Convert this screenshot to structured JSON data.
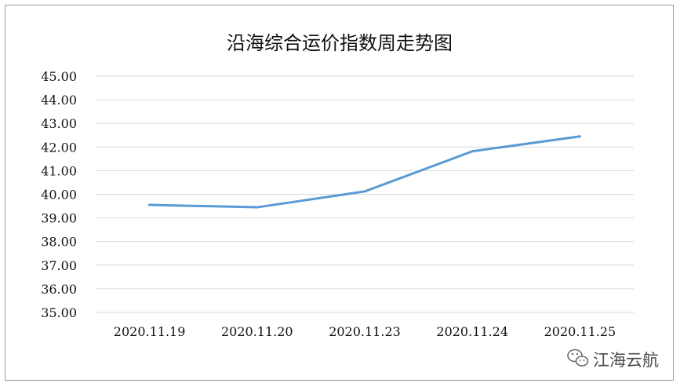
{
  "chart_data": {
    "type": "line",
    "title": "沿海综合运价指数周走势图",
    "xlabel": "",
    "ylabel": "",
    "categories": [
      "2020.11.19",
      "2020.11.20",
      "2020.11.23",
      "2020.11.24",
      "2020.11.25"
    ],
    "series": [
      {
        "values": [
          39.55,
          39.45,
          40.12,
          41.82,
          42.45
        ]
      }
    ],
    "ylim": [
      35,
      45
    ],
    "yticks": [
      "35.00",
      "36.00",
      "37.00",
      "38.00",
      "39.00",
      "40.00",
      "41.00",
      "42.00",
      "43.00",
      "44.00",
      "45.00"
    ],
    "grid": true,
    "legend": "none",
    "line_color": "#5b9bd5",
    "grid_color": "#d9d9d9"
  },
  "watermark": {
    "icon": "wechat-icon",
    "text": "江海云航"
  }
}
